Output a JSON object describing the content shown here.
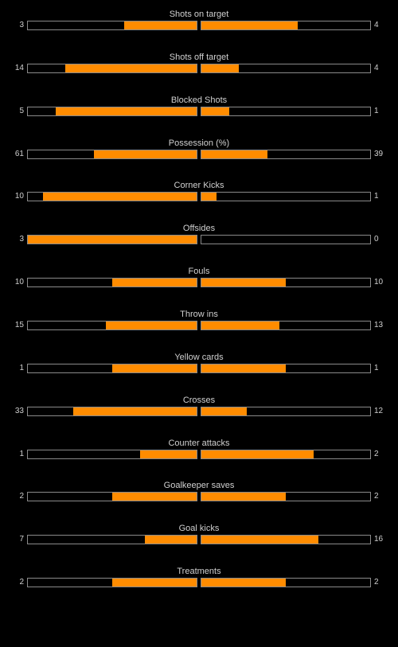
{
  "colors": {
    "background": "#000000",
    "bar_fill": "#ff8c00",
    "bar_border": "#8a8a8a",
    "text": "#d0d0d0"
  },
  "stats": [
    {
      "label": "Shots on target",
      "home": "3",
      "away": "4"
    },
    {
      "label": "Shots off target",
      "home": "14",
      "away": "4"
    },
    {
      "label": "Blocked Shots",
      "home": "5",
      "away": "1"
    },
    {
      "label": "Possession (%)",
      "home": "61",
      "away": "39"
    },
    {
      "label": "Corner Kicks",
      "home": "10",
      "away": "1"
    },
    {
      "label": "Offsides",
      "home": "3",
      "away": "0"
    },
    {
      "label": "Fouls",
      "home": "10",
      "away": "10"
    },
    {
      "label": "Throw ins",
      "home": "15",
      "away": "13"
    },
    {
      "label": "Yellow cards",
      "home": "1",
      "away": "1"
    },
    {
      "label": "Crosses",
      "home": "33",
      "away": "12"
    },
    {
      "label": "Counter attacks",
      "home": "1",
      "away": "2"
    },
    {
      "label": "Goalkeeper saves",
      "home": "2",
      "away": "2"
    },
    {
      "label": "Goal kicks",
      "home": "7",
      "away": "16"
    },
    {
      "label": "Treatments",
      "home": "2",
      "away": "2"
    }
  ]
}
